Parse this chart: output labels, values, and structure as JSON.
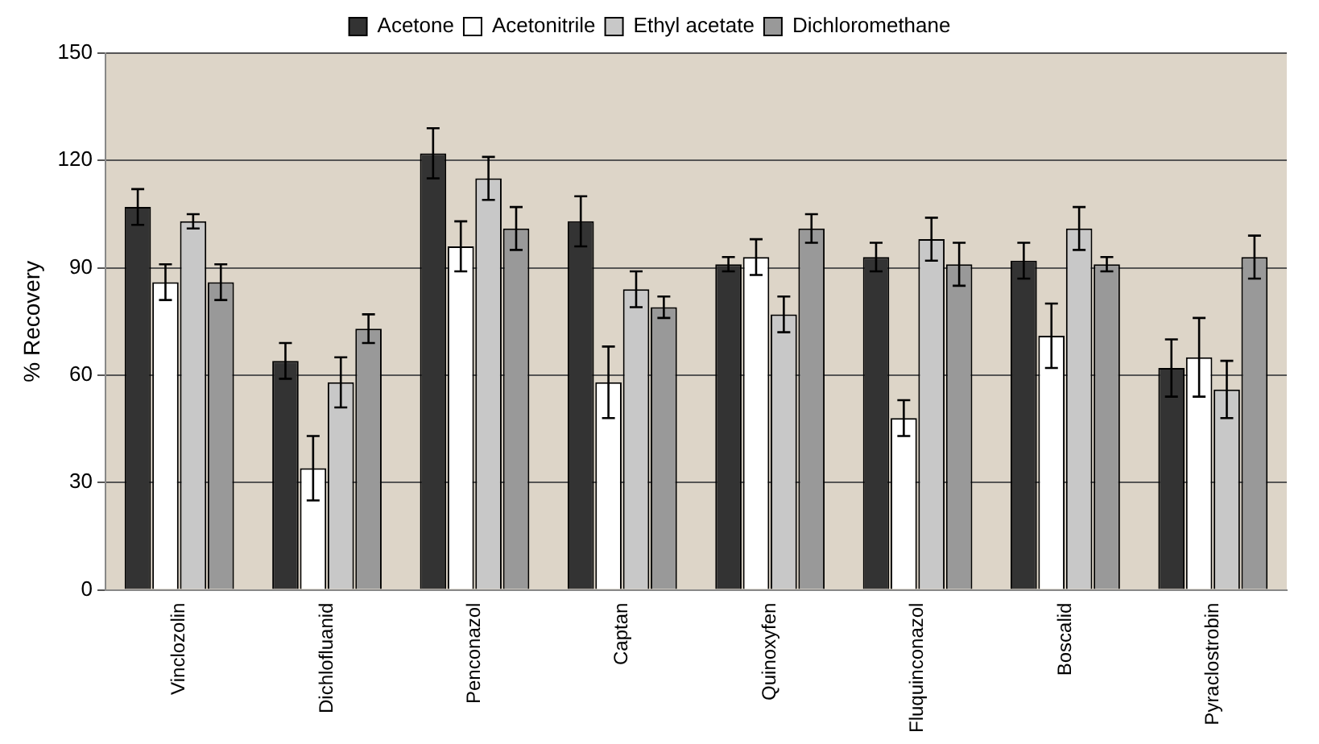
{
  "chart_data": {
    "type": "bar",
    "ylabel": "% Recovery",
    "categories": [
      "Vinclozolin",
      "Dichlofluanid",
      "Penconazol",
      "Captan",
      "Quinoxyfen",
      "Fluquinconazol",
      "Boscalid",
      "Pyraclostrobin"
    ],
    "series": [
      {
        "name": "Acetone",
        "color": "#333333",
        "values": [
          107,
          64,
          122,
          103,
          91,
          93,
          92,
          62
        ],
        "errors": [
          5,
          5,
          7,
          7,
          2,
          4,
          5,
          8
        ]
      },
      {
        "name": "Acetonitrile",
        "color": "#ffffff",
        "values": [
          86,
          34,
          96,
          58,
          93,
          48,
          71,
          65
        ],
        "errors": [
          5,
          9,
          7,
          10,
          5,
          5,
          9,
          11
        ]
      },
      {
        "name": "Ethyl acetate",
        "color": "#c8c8c8",
        "values": [
          103,
          58,
          115,
          84,
          77,
          98,
          101,
          56
        ],
        "errors": [
          2,
          7,
          6,
          5,
          5,
          6,
          6,
          8
        ]
      },
      {
        "name": "Dichloromethane",
        "color": "#999999",
        "values": [
          86,
          73,
          101,
          79,
          101,
          91,
          91,
          93
        ],
        "errors": [
          5,
          4,
          6,
          3,
          4,
          6,
          2,
          6
        ]
      }
    ],
    "ylim": [
      0,
      150
    ],
    "yticks": [
      0,
      30,
      60,
      90,
      120,
      150
    ],
    "grid": "y",
    "legend": "top"
  }
}
